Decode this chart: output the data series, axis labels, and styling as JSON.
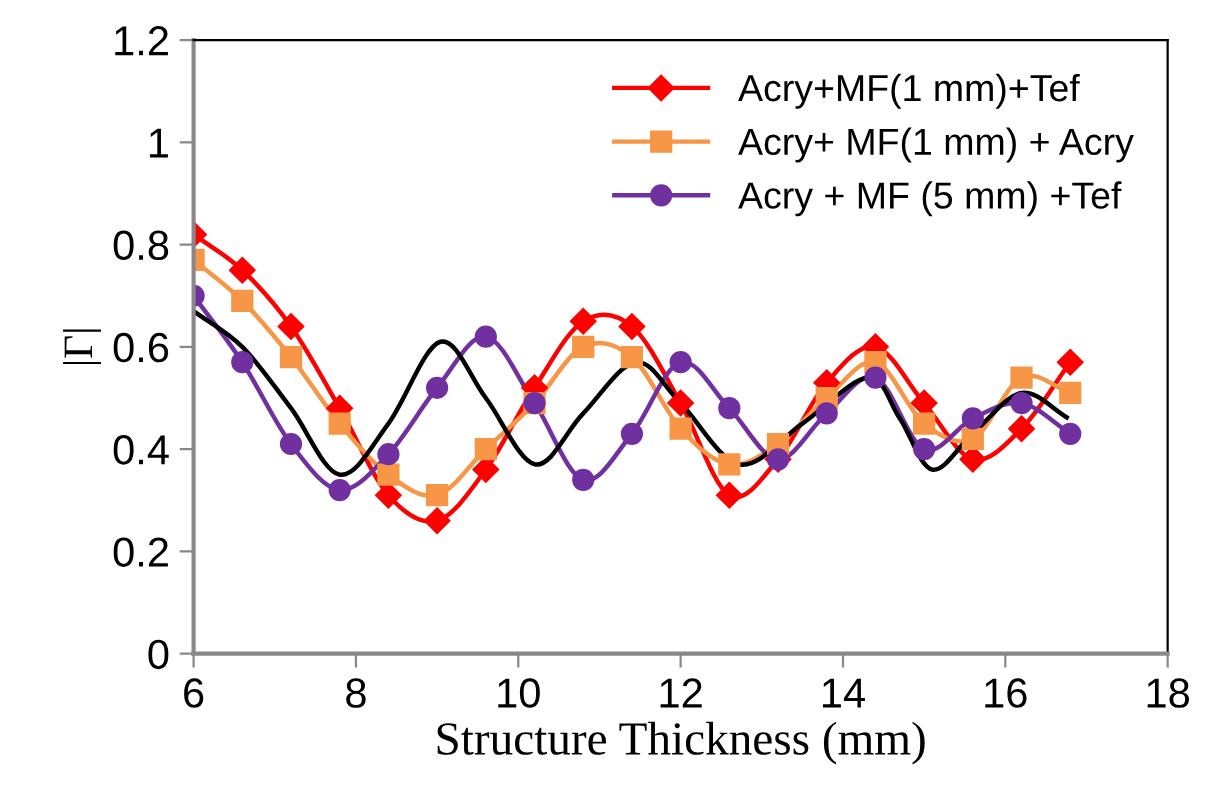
{
  "chart_data": {
    "type": "line",
    "xlabel": "Structure Thickness (mm)",
    "ylabel": "|Γ|",
    "x": [
      6,
      6.6,
      7.2,
      7.8,
      8.4,
      9.0,
      9.6,
      10.2,
      10.8,
      11.4,
      12.0,
      12.6,
      13.2,
      13.8,
      14.4,
      15.0,
      15.6,
      16.2,
      16.8
    ],
    "series": [
      {
        "name": "Acry+MF(1 mm)+Tef",
        "color": "#ff0000",
        "marker": "diamond",
        "values": [
          0.82,
          0.75,
          0.64,
          0.48,
          0.31,
          0.26,
          0.36,
          0.52,
          0.65,
          0.64,
          0.49,
          0.31,
          0.38,
          0.53,
          0.6,
          0.49,
          0.38,
          0.44,
          0.57
        ]
      },
      {
        "name": "Acry+ MF(1 mm) + Acry",
        "color": "#f79646",
        "marker": "square",
        "values": [
          0.77,
          0.69,
          0.58,
          0.45,
          0.35,
          0.31,
          0.4,
          0.49,
          0.6,
          0.58,
          0.44,
          0.37,
          0.41,
          0.5,
          0.57,
          0.45,
          0.42,
          0.54,
          0.51
        ]
      },
      {
        "name": "Acry + MF (5 mm) +Tef",
        "color": "#7030a0",
        "marker": "circle",
        "values": [
          0.7,
          0.57,
          0.41,
          0.32,
          0.39,
          0.52,
          0.62,
          0.49,
          0.34,
          0.43,
          0.57,
          0.48,
          0.38,
          0.47,
          0.54,
          0.4,
          0.46,
          0.49,
          0.43
        ]
      },
      {
        "color": "#000000",
        "marker": "none",
        "x": [
          6,
          6.6,
          7.2,
          7.8,
          8.4,
          9.04,
          9.6,
          10.21,
          10.8,
          11.45,
          12.0,
          12.73,
          13.5,
          14.31,
          14.7,
          15.1,
          15.6,
          16.2,
          16.78
        ],
        "values": [
          0.67,
          0.6,
          0.48,
          0.35,
          0.45,
          0.61,
          0.5,
          0.37,
          0.47,
          0.57,
          0.49,
          0.37,
          0.45,
          0.54,
          0.46,
          0.36,
          0.43,
          0.51,
          0.46
        ]
      }
    ],
    "xlim": [
      6,
      18
    ],
    "xticks": [
      6,
      8,
      10,
      12,
      14,
      16,
      18
    ],
    "ylim": [
      0,
      1.2
    ],
    "yticks": [
      0,
      0.2,
      0.4,
      0.6,
      0.8,
      1,
      1.2
    ],
    "grid": false,
    "legend": "top right",
    "line_style": "solid"
  }
}
